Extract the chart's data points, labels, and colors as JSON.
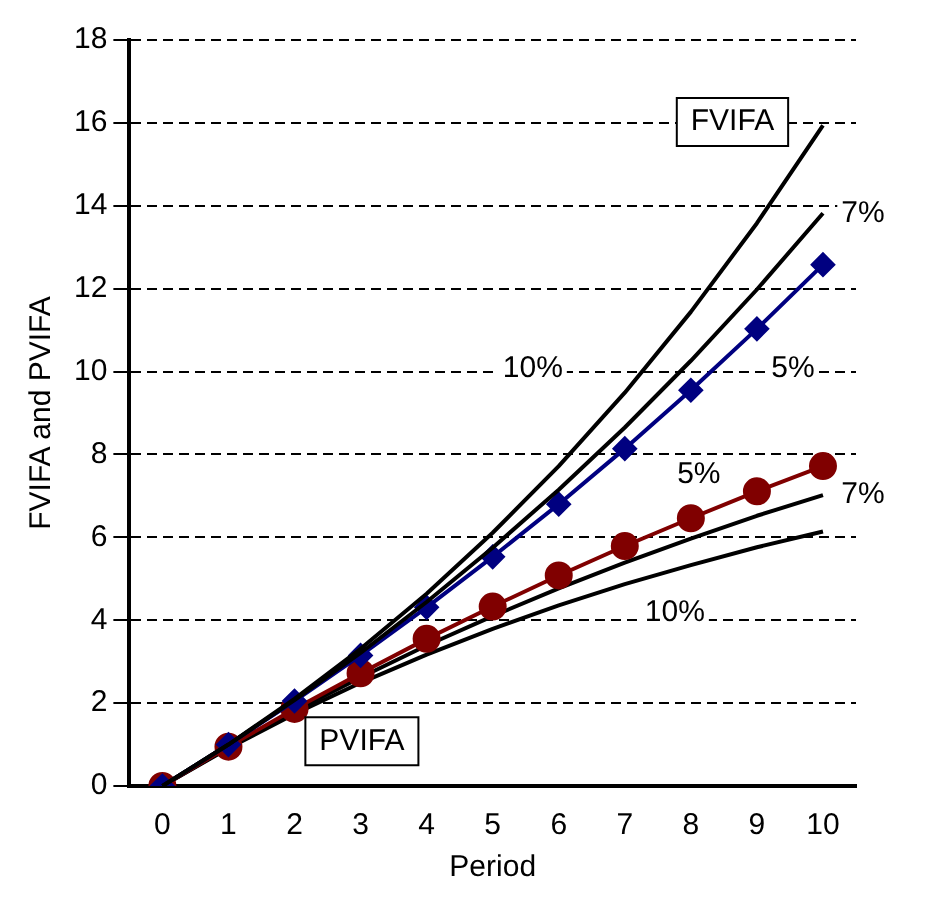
{
  "chart_data": {
    "type": "line",
    "xlabel": "Period",
    "ylabel": "FVIFA and PVIFA",
    "x": [
      0,
      1,
      2,
      3,
      4,
      5,
      6,
      7,
      8,
      9,
      10
    ],
    "series": [
      {
        "name": "10%",
        "color": "#000000",
        "values": [
          0,
          1,
          2.1,
          3.31,
          4.64,
          6.11,
          7.72,
          9.49,
          11.44,
          13.58,
          15.94
        ]
      },
      {
        "name": "7%",
        "color": "#000000",
        "values": [
          0,
          1,
          2.07,
          3.21,
          4.44,
          5.75,
          7.15,
          8.65,
          10.26,
          11.98,
          13.82
        ]
      },
      {
        "name": "5%",
        "color": "#000080",
        "marker": "diamond",
        "values": [
          0,
          1,
          2.05,
          3.15,
          4.31,
          5.53,
          6.8,
          8.14,
          9.55,
          11.03,
          12.58
        ]
      },
      {
        "name": "5%",
        "color": "#800000",
        "marker": "circle",
        "values": [
          0,
          0.95,
          1.86,
          2.72,
          3.55,
          4.33,
          5.08,
          5.79,
          6.46,
          7.11,
          7.72
        ]
      },
      {
        "name": "7%",
        "color": "#000000",
        "values": [
          0,
          0.93,
          1.81,
          2.62,
          3.39,
          4.1,
          4.77,
          5.39,
          5.97,
          6.52,
          7.02
        ]
      },
      {
        "name": "10%",
        "color": "#000000",
        "values": [
          0,
          0.91,
          1.74,
          2.49,
          3.17,
          3.79,
          4.36,
          4.87,
          5.33,
          5.76,
          6.14
        ]
      }
    ],
    "xlim": [
      -0.5,
      10.5
    ],
    "xticks": [
      0,
      1,
      2,
      3,
      4,
      5,
      6,
      7,
      8,
      9,
      10
    ],
    "ylim": [
      0,
      18
    ],
    "yticks": [
      0,
      2,
      4,
      6,
      8,
      10,
      12,
      14,
      16,
      18
    ],
    "grid": "y",
    "legend": false,
    "line_style": "solid",
    "annotations": [
      "FVIFA",
      "PVIFA"
    ]
  }
}
